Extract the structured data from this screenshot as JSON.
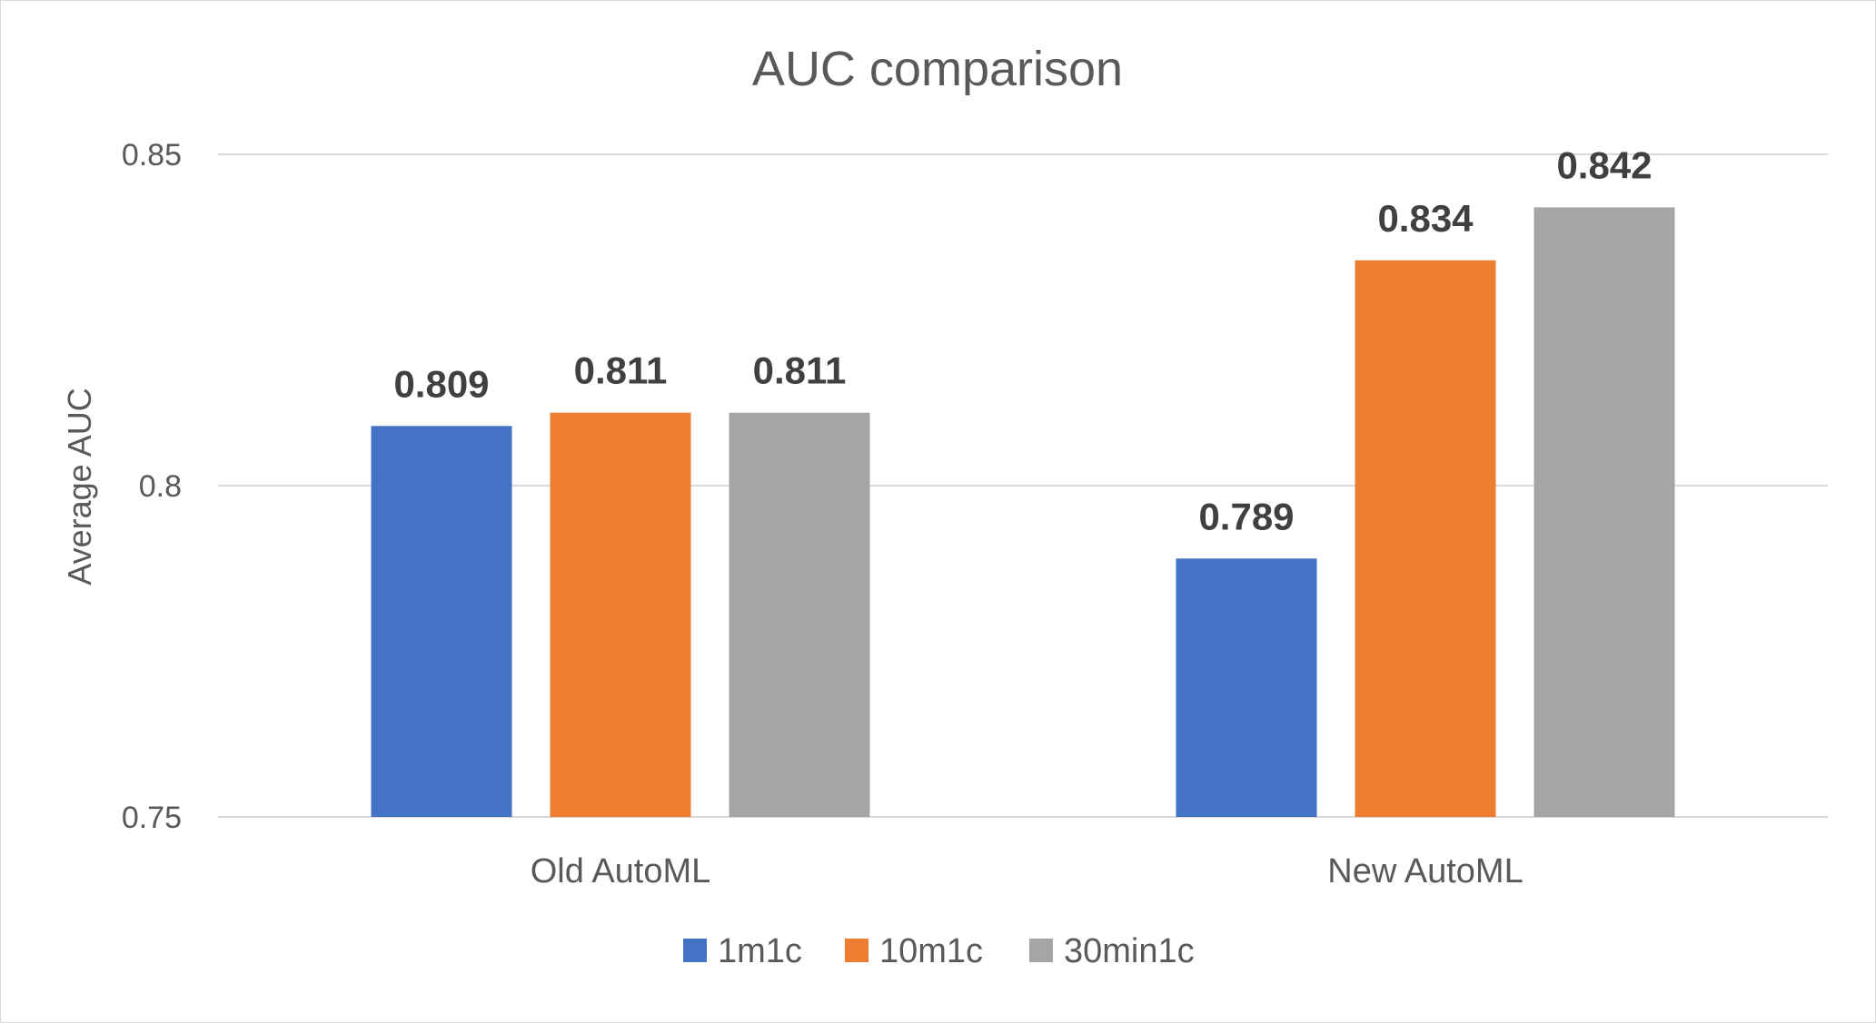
{
  "chart_data": {
    "type": "bar",
    "title": "AUC comparison",
    "xlabel": "",
    "ylabel": "Average AUC",
    "ylim": [
      0.75,
      0.85
    ],
    "yticks": [
      0.75,
      0.8,
      0.85
    ],
    "ytick_labels": [
      "0.75",
      "0.8",
      "0.85"
    ],
    "categories": [
      "Old AutoML",
      "New AutoML"
    ],
    "series": [
      {
        "name": "1m1c",
        "values": [
          0.809,
          0.789
        ],
        "labels": [
          "0.809",
          "0.789"
        ],
        "color": "#4472C4"
      },
      {
        "name": "10m1c",
        "values": [
          0.811,
          0.834
        ],
        "labels": [
          "0.811",
          "0.834"
        ],
        "color": "#ED7D31"
      },
      {
        "name": "30min1c",
        "values": [
          0.811,
          0.842
        ],
        "labels": [
          "0.811",
          "0.842"
        ],
        "color": "#A5A5A5"
      }
    ],
    "grid": true,
    "legend_position": "bottom",
    "colors": {
      "gridline": "#d9d9d9",
      "text": "#595959",
      "data_label": "#404040"
    }
  }
}
